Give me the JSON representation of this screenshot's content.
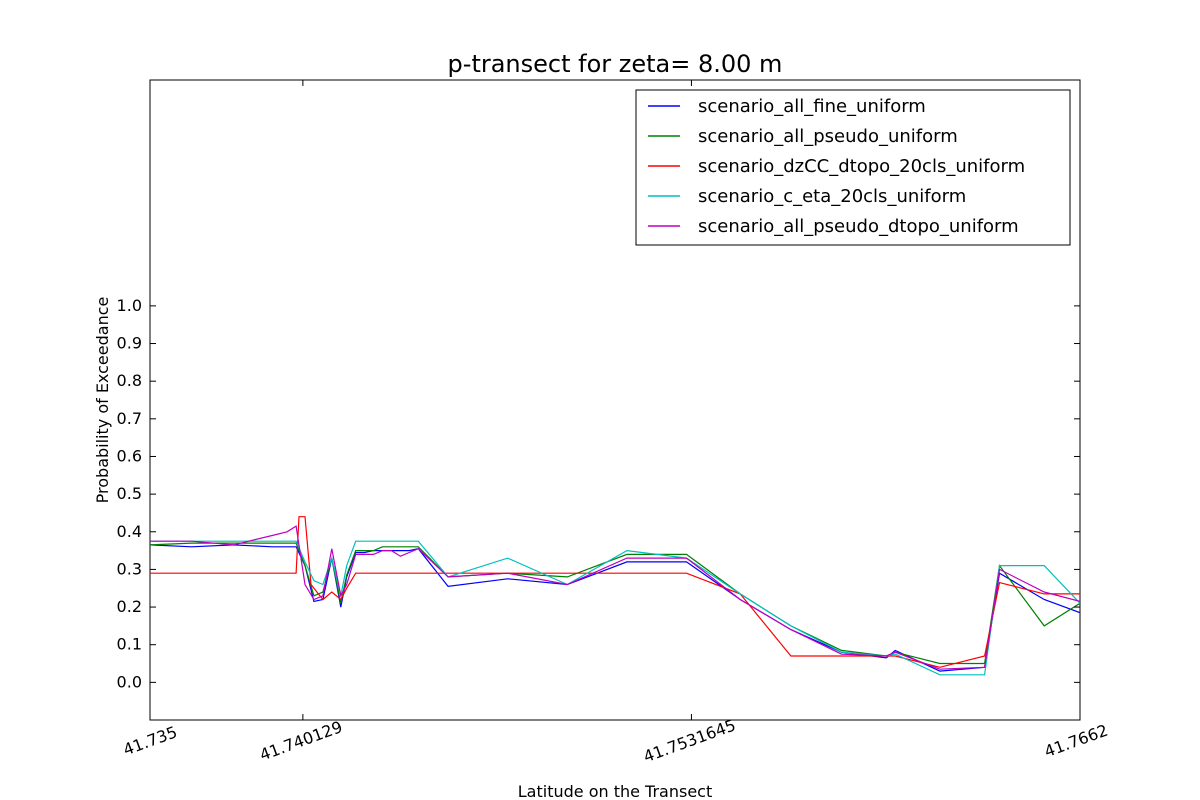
{
  "chart_data": {
    "type": "line",
    "title": "p-transect for zeta= 8.00 m",
    "xlabel": "Latitude on the Transect",
    "ylabel": "Probability of Exceedance",
    "xlim": [
      41.735,
      41.7662
    ],
    "ylim": [
      -0.1,
      1.6
    ],
    "x_ticks": [
      41.735,
      41.740129,
      41.7531645,
      41.7662
    ],
    "x_tick_labels": [
      "41.735",
      "41.740129",
      "41.7531645",
      "41.7662"
    ],
    "y_ticks": [
      0.0,
      0.1,
      0.2,
      0.3,
      0.4,
      0.5,
      0.6,
      0.7,
      0.8,
      0.9,
      1.0
    ],
    "y_tick_labels": [
      "0.0",
      "0.1",
      "0.2",
      "0.3",
      "0.4",
      "0.5",
      "0.6",
      "0.7",
      "0.8",
      "0.9",
      "1.0"
    ],
    "grid": false,
    "legend_position": "top-right",
    "series": [
      {
        "name": "scenario_all_fine_uniform",
        "color": "#0000ff",
        "x": [
          41.735,
          41.7364,
          41.7378,
          41.7391,
          41.7396,
          41.7399,
          41.7402,
          41.7405,
          41.7408,
          41.7411,
          41.7414,
          41.7416,
          41.7419,
          41.7422,
          41.7425,
          41.7428,
          41.7431,
          41.7434,
          41.7437,
          41.744,
          41.745,
          41.747,
          41.749,
          41.751,
          41.753,
          41.7548,
          41.7565,
          41.7582,
          41.7597,
          41.76,
          41.7615,
          41.763,
          41.7635,
          41.765,
          41.7662
        ],
        "y": [
          0.365,
          0.36,
          0.365,
          0.36,
          0.36,
          0.36,
          0.31,
          0.215,
          0.22,
          0.33,
          0.2,
          0.28,
          0.345,
          0.345,
          0.35,
          0.35,
          0.35,
          0.35,
          0.35,
          0.355,
          0.255,
          0.275,
          0.26,
          0.32,
          0.32,
          0.22,
          0.14,
          0.08,
          0.065,
          0.085,
          0.03,
          0.04,
          0.29,
          0.22,
          0.185
        ]
      },
      {
        "name": "scenario_all_pseudo_uniform",
        "color": "#008000",
        "x": [
          41.735,
          41.7364,
          41.7378,
          41.7391,
          41.7396,
          41.7399,
          41.7402,
          41.7405,
          41.7408,
          41.7411,
          41.7414,
          41.7416,
          41.7419,
          41.7422,
          41.7425,
          41.7428,
          41.7431,
          41.7434,
          41.7437,
          41.744,
          41.745,
          41.747,
          41.749,
          41.751,
          41.753,
          41.7548,
          41.7565,
          41.7582,
          41.7597,
          41.76,
          41.7615,
          41.763,
          41.7635,
          41.765,
          41.7662
        ],
        "y": [
          0.365,
          0.37,
          0.37,
          0.37,
          0.37,
          0.37,
          0.31,
          0.23,
          0.24,
          0.33,
          0.21,
          0.285,
          0.35,
          0.35,
          0.35,
          0.36,
          0.36,
          0.36,
          0.36,
          0.36,
          0.28,
          0.29,
          0.28,
          0.34,
          0.34,
          0.235,
          0.15,
          0.085,
          0.07,
          0.08,
          0.05,
          0.05,
          0.31,
          0.15,
          0.21
        ]
      },
      {
        "name": "scenario_dzCC_dtopo_20cls_uniform",
        "color": "#ff0000",
        "x": [
          41.735,
          41.7364,
          41.7378,
          41.7391,
          41.7399,
          41.74,
          41.7402,
          41.7404,
          41.7406,
          41.7408,
          41.7411,
          41.7414,
          41.7416,
          41.7419,
          41.7422,
          41.7425,
          41.7428,
          41.7431,
          41.7434,
          41.7437,
          41.744,
          41.745,
          41.747,
          41.749,
          41.751,
          41.753,
          41.7548,
          41.7565,
          41.7582,
          41.7597,
          41.76,
          41.7615,
          41.763,
          41.7635,
          41.765,
          41.7662
        ],
        "y": [
          0.29,
          0.29,
          0.29,
          0.29,
          0.29,
          0.44,
          0.44,
          0.26,
          0.24,
          0.22,
          0.24,
          0.22,
          0.25,
          0.29,
          0.29,
          0.29,
          0.29,
          0.29,
          0.29,
          0.29,
          0.29,
          0.29,
          0.29,
          0.29,
          0.29,
          0.29,
          0.235,
          0.07,
          0.07,
          0.07,
          0.07,
          0.04,
          0.07,
          0.265,
          0.235,
          0.235
        ]
      },
      {
        "name": "scenario_c_eta_20cls_uniform",
        "color": "#00bfbf",
        "x": [
          41.735,
          41.7364,
          41.7378,
          41.7391,
          41.7396,
          41.7399,
          41.7402,
          41.7405,
          41.7408,
          41.7411,
          41.7414,
          41.7416,
          41.7419,
          41.7422,
          41.7425,
          41.7428,
          41.7431,
          41.7434,
          41.7437,
          41.744,
          41.745,
          41.747,
          41.749,
          41.751,
          41.753,
          41.7548,
          41.7565,
          41.7582,
          41.7597,
          41.76,
          41.7615,
          41.763,
          41.7635,
          41.765,
          41.7662
        ],
        "y": [
          0.375,
          0.375,
          0.375,
          0.375,
          0.375,
          0.375,
          0.32,
          0.27,
          0.26,
          0.33,
          0.23,
          0.31,
          0.375,
          0.375,
          0.375,
          0.375,
          0.375,
          0.375,
          0.375,
          0.375,
          0.28,
          0.33,
          0.26,
          0.35,
          0.33,
          0.235,
          0.15,
          0.08,
          0.07,
          0.075,
          0.02,
          0.02,
          0.31,
          0.31,
          0.21
        ]
      },
      {
        "name": "scenario_all_pseudo_dtopo_uniform",
        "color": "#bf00bf",
        "x": [
          41.735,
          41.7364,
          41.7378,
          41.7391,
          41.7396,
          41.7399,
          41.7402,
          41.7405,
          41.7408,
          41.7411,
          41.7414,
          41.7416,
          41.7419,
          41.7422,
          41.7425,
          41.7428,
          41.7431,
          41.7434,
          41.7437,
          41.744,
          41.745,
          41.747,
          41.749,
          41.751,
          41.753,
          41.7548,
          41.7565,
          41.7582,
          41.7597,
          41.76,
          41.7615,
          41.763,
          41.7635,
          41.765,
          41.7662
        ],
        "y": [
          0.375,
          0.375,
          0.365,
          0.39,
          0.4,
          0.415,
          0.26,
          0.22,
          0.23,
          0.355,
          0.23,
          0.26,
          0.34,
          0.34,
          0.34,
          0.35,
          0.35,
          0.335,
          0.345,
          0.355,
          0.28,
          0.29,
          0.26,
          0.33,
          0.33,
          0.22,
          0.14,
          0.075,
          0.07,
          0.08,
          0.035,
          0.04,
          0.3,
          0.24,
          0.215
        ]
      }
    ]
  }
}
